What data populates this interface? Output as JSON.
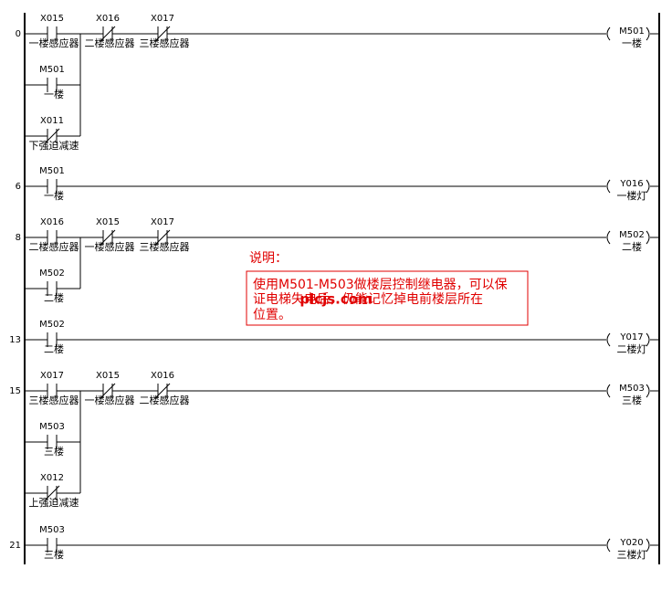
{
  "rungs": [
    {
      "step": "0",
      "contacts": [
        {
          "address": "X015",
          "comment": "一楼感应器",
          "kind": "NO"
        },
        {
          "address": "X016",
          "comment": "二楼感应器",
          "kind": "NC"
        },
        {
          "address": "X017",
          "comment": "三楼感应器",
          "kind": "NC"
        }
      ],
      "branches": [
        {
          "address": "M501",
          "comment": "一楼",
          "kind": "NO"
        },
        {
          "address": "X011",
          "comment": "下强迫减速",
          "kind": "NC"
        }
      ],
      "coil": {
        "address": "M501",
        "comment": "一楼"
      }
    },
    {
      "step": "6",
      "contacts": [
        {
          "address": "M501",
          "comment": "一楼",
          "kind": "NO"
        }
      ],
      "branches": [],
      "coil": {
        "address": "Y016",
        "comment": "一楼灯"
      }
    },
    {
      "step": "8",
      "contacts": [
        {
          "address": "X016",
          "comment": "二楼感应器",
          "kind": "NO"
        },
        {
          "address": "X015",
          "comment": "一楼感应器",
          "kind": "NC"
        },
        {
          "address": "X017",
          "comment": "三楼感应器",
          "kind": "NC"
        }
      ],
      "branches": [
        {
          "address": "M502",
          "comment": "二楼",
          "kind": "NO"
        }
      ],
      "coil": {
        "address": "M502",
        "comment": "二楼"
      }
    },
    {
      "step": "13",
      "contacts": [
        {
          "address": "M502",
          "comment": "二楼",
          "kind": "NO"
        }
      ],
      "branches": [],
      "coil": {
        "address": "Y017",
        "comment": "二楼灯"
      }
    },
    {
      "step": "15",
      "contacts": [
        {
          "address": "X017",
          "comment": "三楼感应器",
          "kind": "NO"
        },
        {
          "address": "X015",
          "comment": "一楼感应器",
          "kind": "NC"
        },
        {
          "address": "X016",
          "comment": "二楼感应器",
          "kind": "NC"
        }
      ],
      "branches": [
        {
          "address": "M503",
          "comment": "三楼",
          "kind": "NO"
        },
        {
          "address": "X012",
          "comment": "上强迫减速",
          "kind": "NC"
        }
      ],
      "coil": {
        "address": "M503",
        "comment": "三楼"
      }
    },
    {
      "step": "21",
      "contacts": [
        {
          "address": "M503",
          "comment": "三楼",
          "kind": "NO"
        }
      ],
      "branches": [],
      "coil": {
        "address": "Y020",
        "comment": "三楼灯"
      }
    }
  ],
  "note": {
    "title": "说明：",
    "lines": [
      "使用M501-M503做楼层控制继电器，可以保",
      "证电梯失电后，仍能记忆掉电前楼层所在",
      "位置。"
    ]
  },
  "watermark": "plcjs.com"
}
